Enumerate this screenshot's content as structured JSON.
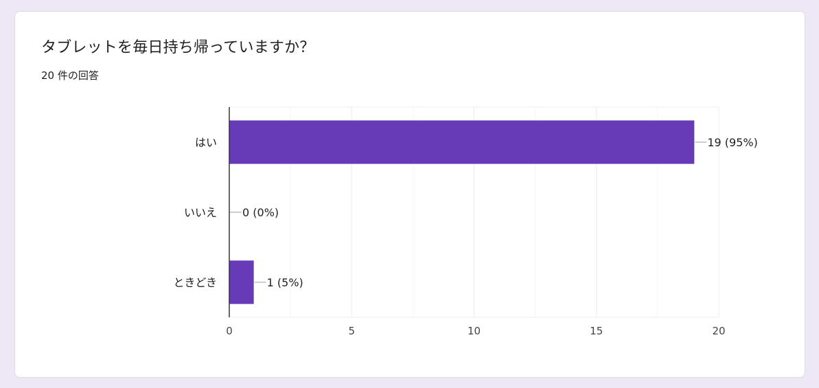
{
  "question": {
    "title": "タブレットを毎日持ち帰っていますか？",
    "response_count": "20 件の回答"
  },
  "colors": {
    "background": "#ede7f6",
    "bar": "#673ab7",
    "grid": "#ececec",
    "axis": "#333333",
    "text": "#202124"
  },
  "chart_data": {
    "type": "bar",
    "orientation": "horizontal",
    "categories": [
      "はい",
      "いいえ",
      "ときどき"
    ],
    "values": [
      19,
      0,
      1
    ],
    "data_labels": [
      "19 (95%)",
      "0 (0%)",
      "1 (5%)"
    ],
    "xlim": [
      0,
      20
    ],
    "xticks": [
      0,
      5,
      10,
      15,
      20
    ],
    "grid": true,
    "legend": "none"
  }
}
